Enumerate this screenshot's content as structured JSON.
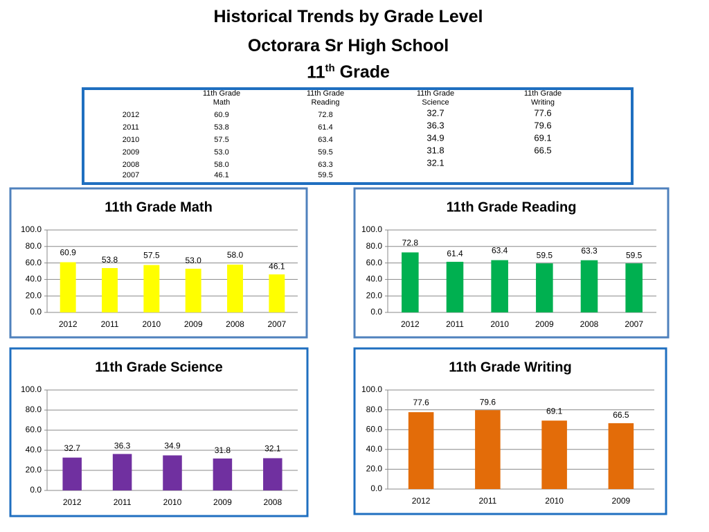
{
  "title": {
    "line1": "Historical Trends by Grade Level",
    "line2": "Octorara Sr High School",
    "line3": {
      "number": "11",
      "suffix": "th",
      "rest": "Grade"
    }
  },
  "table": {
    "columns": [
      {
        "line1": "11th Grade",
        "line2": "Math"
      },
      {
        "line1": "11th Grade",
        "line2": "Reading"
      },
      {
        "line1": "11th Grade",
        "line2": "Science"
      },
      {
        "line1": "11th Grade",
        "line2": "Writing"
      }
    ],
    "rows": [
      {
        "year": "2012",
        "values": [
          "60.9",
          "72.8",
          "32.7",
          "77.6"
        ]
      },
      {
        "year": "2011",
        "values": [
          "53.8",
          "61.4",
          "36.3",
          "79.6"
        ]
      },
      {
        "year": "2010",
        "values": [
          "57.5",
          "63.4",
          "34.9",
          "69.1"
        ]
      },
      {
        "year": "2009",
        "values": [
          "53.0",
          "59.5",
          "31.8",
          "66.5"
        ]
      },
      {
        "year": "2008",
        "values": [
          "58.0",
          "63.3",
          "32.1"
        ]
      },
      {
        "year": "2007",
        "values": [
          "46.1",
          "59.5"
        ]
      }
    ]
  },
  "chart_data": [
    {
      "type": "bar",
      "title": "11th Grade Math",
      "categories": [
        "2012",
        "2011",
        "2010",
        "2009",
        "2008",
        "2007"
      ],
      "values": [
        60.9,
        53.8,
        57.5,
        53,
        58,
        46.1
      ],
      "value_labels": [
        "60.9",
        "53.8",
        "57.5",
        "53.0",
        "58.0",
        "46.1"
      ],
      "color": "#ffff00",
      "ylim": [
        0,
        100
      ],
      "grid": true,
      "yticks": [
        {
          "value": 0,
          "label": "0.0"
        },
        {
          "value": 20,
          "label": "20.0"
        },
        {
          "value": 40,
          "label": "40.0"
        },
        {
          "value": 60,
          "label": "60.0"
        },
        {
          "value": 80,
          "label": "80.0"
        },
        {
          "value": 100,
          "label": "100.0"
        }
      ]
    },
    {
      "type": "bar",
      "title": "11th Grade Reading",
      "categories": [
        "2012",
        "2011",
        "2010",
        "2009",
        "2008",
        "2007"
      ],
      "values": [
        72.8,
        61.4,
        63.4,
        59.5,
        63.3,
        59.5
      ],
      "value_labels": [
        "72.8",
        "61.4",
        "63.4",
        "59.5",
        "63.3",
        "59.5"
      ],
      "color": "#00b050",
      "ylim": [
        0,
        100
      ],
      "grid": true,
      "yticks": [
        {
          "value": 0,
          "label": "0.0"
        },
        {
          "value": 20,
          "label": "20.0"
        },
        {
          "value": 40,
          "label": "40.0"
        },
        {
          "value": 60,
          "label": "60.0"
        },
        {
          "value": 80,
          "label": "80.0"
        },
        {
          "value": 100,
          "label": "100.0"
        }
      ]
    },
    {
      "type": "bar",
      "title": "11th Grade Science",
      "categories": [
        "2012",
        "2011",
        "2010",
        "2009",
        "2008"
      ],
      "values": [
        32.7,
        36.3,
        34.9,
        31.8,
        32.1
      ],
      "value_labels": [
        "32.7",
        "36.3",
        "34.9",
        "31.8",
        "32.1"
      ],
      "color": "#7030a0",
      "ylim": [
        0,
        100
      ],
      "grid": true,
      "yticks": [
        {
          "value": 0,
          "label": "0.0"
        },
        {
          "value": 20,
          "label": "20.0"
        },
        {
          "value": 40,
          "label": "40.0"
        },
        {
          "value": 60,
          "label": "60.0"
        },
        {
          "value": 80,
          "label": "80.0"
        },
        {
          "value": 100,
          "label": "100.0"
        }
      ]
    },
    {
      "type": "bar",
      "title": "11th Grade Writing",
      "categories": [
        "2012",
        "2011",
        "2010",
        "2009"
      ],
      "values": [
        77.6,
        79.6,
        69.1,
        66.5
      ],
      "value_labels": [
        "77.6",
        "79.6",
        "69.1",
        "66.5"
      ],
      "color": "#e36c09",
      "ylim": [
        0,
        100
      ],
      "grid": true,
      "yticks": [
        {
          "value": 0,
          "label": "0.0"
        },
        {
          "value": 20,
          "label": "20.0"
        },
        {
          "value": 40,
          "label": "40.0"
        },
        {
          "value": 60,
          "label": "60.0"
        },
        {
          "value": 80,
          "label": "80.0"
        },
        {
          "value": 100,
          "label": "100.0"
        }
      ]
    }
  ]
}
